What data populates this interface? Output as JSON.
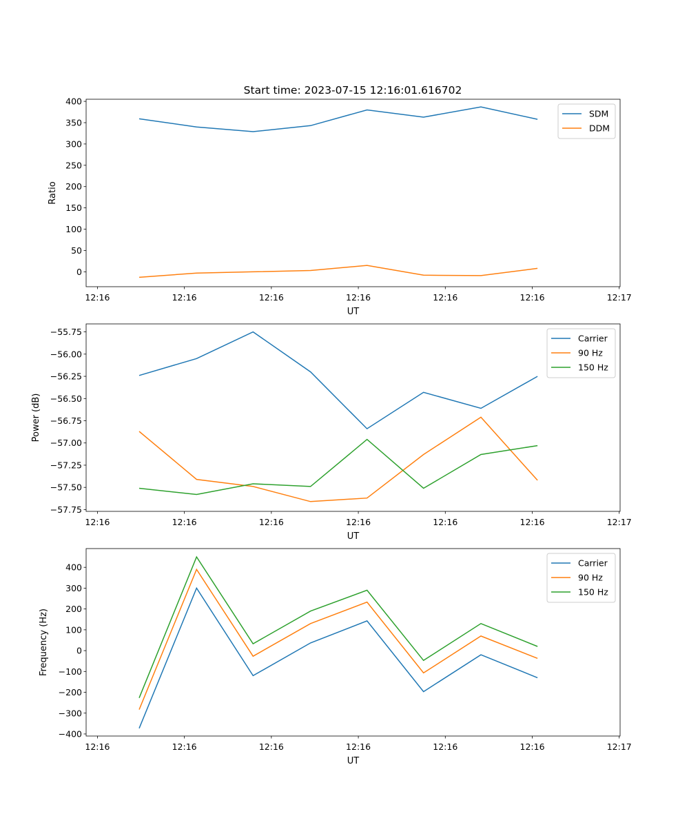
{
  "title": "Start time: 2023-07-15 12:16:01.616702",
  "chart_data": [
    {
      "type": "line",
      "xlabel": "UT",
      "ylabel": "Ratio",
      "x_unit": "seconds after 12:16:00",
      "xlim": [
        -1.3,
        60.1
      ],
      "x_ticks": [
        0,
        10,
        20,
        30,
        40,
        50,
        60
      ],
      "x_tick_labels": [
        "12:16",
        "12:16",
        "12:16",
        "12:16",
        "12:16",
        "12:16",
        "12:17"
      ],
      "ylim": [
        -35,
        405
      ],
      "y_ticks": [
        0,
        50,
        100,
        150,
        200,
        250,
        300,
        350,
        400
      ],
      "y_tick_labels": [
        "0",
        "50",
        "100",
        "150",
        "200",
        "250",
        "300",
        "350",
        "400"
      ],
      "legend": "top-right",
      "x": [
        4.8,
        11.4,
        17.9,
        24.5,
        31.0,
        37.5,
        44.1,
        50.6
      ],
      "series": [
        {
          "name": "SDM",
          "color": "#1f77b4",
          "values": [
            359,
            340,
            329,
            343,
            380,
            363,
            387,
            358
          ]
        },
        {
          "name": "DDM",
          "color": "#ff7f0e",
          "values": [
            -13,
            -3,
            0,
            3,
            15,
            -8,
            -9,
            8
          ]
        }
      ]
    },
    {
      "type": "line",
      "xlabel": "UT",
      "ylabel": "Power (dB)",
      "x_unit": "seconds after 12:16:00",
      "xlim": [
        -1.3,
        60.1
      ],
      "x_ticks": [
        0,
        10,
        20,
        30,
        40,
        50,
        60
      ],
      "x_tick_labels": [
        "12:16",
        "12:16",
        "12:16",
        "12:16",
        "12:16",
        "12:16",
        "12:17"
      ],
      "ylim": [
        -57.77,
        -55.66
      ],
      "y_ticks": [
        -55.75,
        -56.0,
        -56.25,
        -56.5,
        -56.75,
        -57.0,
        -57.25,
        -57.5,
        -57.75
      ],
      "y_tick_labels": [
        "−55.75",
        "−56.00",
        "−56.25",
        "−56.50",
        "−56.75",
        "−57.00",
        "−57.25",
        "−57.50",
        "−57.75"
      ],
      "legend": "top-right",
      "x": [
        4.8,
        11.4,
        17.9,
        24.5,
        31.0,
        37.5,
        44.1,
        50.6
      ],
      "series": [
        {
          "name": "Carrier",
          "color": "#1f77b4",
          "values": [
            -56.24,
            -56.05,
            -55.75,
            -56.2,
            -56.84,
            -56.43,
            -56.61,
            -56.25
          ]
        },
        {
          "name": "90 Hz",
          "color": "#ff7f0e",
          "values": [
            -56.87,
            -57.41,
            -57.49,
            -57.66,
            -57.62,
            -57.13,
            -56.71,
            -57.42
          ]
        },
        {
          "name": "150 Hz",
          "color": "#2ca02c",
          "values": [
            -57.51,
            -57.58,
            -57.46,
            -57.49,
            -56.96,
            -57.51,
            -57.13,
            -57.03
          ]
        }
      ]
    },
    {
      "type": "line",
      "xlabel": "UT",
      "ylabel": "Frequency (Hz)",
      "x_unit": "seconds after 12:16:00",
      "xlim": [
        -1.3,
        60.1
      ],
      "x_ticks": [
        0,
        10,
        20,
        30,
        40,
        50,
        60
      ],
      "x_tick_labels": [
        "12:16",
        "12:16",
        "12:16",
        "12:16",
        "12:16",
        "12:16",
        "12:17"
      ],
      "ylim": [
        -410,
        490
      ],
      "y_ticks": [
        -400,
        -300,
        -200,
        -100,
        0,
        100,
        200,
        300,
        400
      ],
      "y_tick_labels": [
        "−400",
        "−300",
        "−200",
        "−100",
        "0",
        "100",
        "200",
        "300",
        "400"
      ],
      "legend": "top-right",
      "x": [
        4.8,
        11.4,
        17.9,
        24.5,
        31.0,
        37.5,
        44.1,
        50.6
      ],
      "series": [
        {
          "name": "Carrier",
          "color": "#1f77b4",
          "values": [
            -373,
            300,
            -120,
            37,
            143,
            -197,
            -20,
            -130
          ]
        },
        {
          "name": "90 Hz",
          "color": "#ff7f0e",
          "values": [
            -283,
            390,
            -27,
            130,
            233,
            -107,
            70,
            -37
          ]
        },
        {
          "name": "150 Hz",
          "color": "#2ca02c",
          "values": [
            -227,
            450,
            33,
            190,
            290,
            -47,
            130,
            20
          ]
        }
      ]
    }
  ]
}
